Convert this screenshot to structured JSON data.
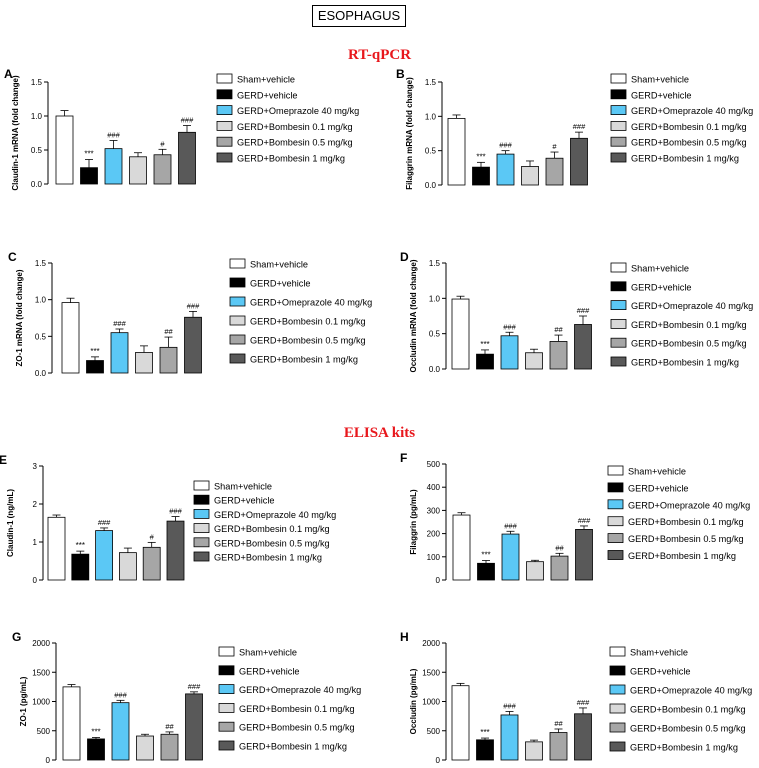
{
  "figure_title": "ESOPHAGUS",
  "section_headings": {
    "rtqpcr": "RT-qPCR",
    "elisa": "ELISA kits"
  },
  "legend_labels": [
    "Sham+vehicle",
    "GERD+vehicle",
    "GERD+Omeprazole 40 mg/kg",
    "GERD+Bombesin 0.1 mg/kg",
    "GERD+Bombesin 0.5 mg/kg",
    "GERD+Bombesin 1 mg/kg"
  ],
  "group_colors": [
    "#ffffff",
    "#000000",
    "#5bc8f5",
    "#d9d9d9",
    "#a6a6a6",
    "#595959"
  ],
  "chart_data": [
    {
      "panel": "A",
      "type": "bar",
      "ylabel": "Claudin-1 mRNA (fold change)",
      "ylim": [
        0,
        1.5
      ],
      "yticks": [
        "0.0",
        "0.5",
        "1.0",
        "1.5"
      ],
      "tick_values": [
        0,
        0.5,
        1.0,
        1.5
      ],
      "values": [
        1.0,
        0.24,
        0.52,
        0.4,
        0.43,
        0.76
      ],
      "errors": [
        0.08,
        0.12,
        0.12,
        0.06,
        0.08,
        0.1
      ],
      "annotations": [
        "",
        "***",
        "###",
        "",
        "#",
        "###"
      ]
    },
    {
      "panel": "B",
      "type": "bar",
      "ylabel": "Filaggrin mRNA (fold change)",
      "ylim": [
        0,
        1.5
      ],
      "yticks": [
        "0.0",
        "0.5",
        "1.0",
        "1.5"
      ],
      "tick_values": [
        0,
        0.5,
        1.0,
        1.5
      ],
      "values": [
        0.97,
        0.26,
        0.45,
        0.27,
        0.39,
        0.68
      ],
      "errors": [
        0.05,
        0.07,
        0.05,
        0.08,
        0.09,
        0.09
      ],
      "annotations": [
        "",
        "***",
        "###",
        "",
        "#",
        "###"
      ]
    },
    {
      "panel": "C",
      "type": "bar",
      "ylabel": "ZO-1 mRNA (fold change)",
      "ylim": [
        0,
        1.5
      ],
      "yticks": [
        "0.0",
        "0.5",
        "1.0",
        "1.5"
      ],
      "tick_values": [
        0,
        0.5,
        1.0,
        1.5
      ],
      "values": [
        0.96,
        0.17,
        0.55,
        0.28,
        0.35,
        0.76
      ],
      "errors": [
        0.06,
        0.05,
        0.05,
        0.09,
        0.14,
        0.08
      ],
      "annotations": [
        "",
        "***",
        "###",
        "",
        "##",
        "###"
      ]
    },
    {
      "panel": "D",
      "type": "bar",
      "ylabel": "Occludin mRNA (fold change)",
      "ylim": [
        0,
        1.5
      ],
      "yticks": [
        "0.0",
        "0.5",
        "1.0",
        "1.5"
      ],
      "tick_values": [
        0,
        0.5,
        1.0,
        1.5
      ],
      "values": [
        0.99,
        0.21,
        0.47,
        0.23,
        0.39,
        0.63
      ],
      "errors": [
        0.04,
        0.06,
        0.05,
        0.05,
        0.09,
        0.12
      ],
      "annotations": [
        "",
        "***",
        "###",
        "",
        "##",
        "###"
      ]
    },
    {
      "panel": "E",
      "type": "bar",
      "ylabel": "Claudin-1 (ng/mL)",
      "ylim": [
        0,
        3
      ],
      "yticks": [
        "0",
        "1",
        "2",
        "3"
      ],
      "tick_values": [
        0,
        1,
        2,
        3
      ],
      "values": [
        1.65,
        0.68,
        1.3,
        0.72,
        0.86,
        1.55
      ],
      "errors": [
        0.06,
        0.08,
        0.07,
        0.12,
        0.13,
        0.12
      ],
      "annotations": [
        "",
        "***",
        "###",
        "",
        "#",
        "###"
      ]
    },
    {
      "panel": "F",
      "type": "bar",
      "ylabel": "Filaggrin (pg/mL)",
      "ylim": [
        0,
        500
      ],
      "yticks": [
        "0",
        "100",
        "200",
        "300",
        "400",
        "500"
      ],
      "tick_values": [
        0,
        100,
        200,
        300,
        400,
        500
      ],
      "values": [
        280,
        72,
        198,
        79,
        103,
        218
      ],
      "errors": [
        10,
        12,
        12,
        6,
        12,
        15
      ],
      "annotations": [
        "",
        "***",
        "###",
        "",
        "##",
        "###"
      ]
    },
    {
      "panel": "G",
      "type": "bar",
      "ylabel": "ZO-1 (pg/mL)",
      "ylim": [
        0,
        2000
      ],
      "yticks": [
        "0",
        "500",
        "1000",
        "1500",
        "2000"
      ],
      "tick_values": [
        0,
        500,
        1000,
        1500,
        2000
      ],
      "values": [
        1250,
        360,
        980,
        410,
        440,
        1130
      ],
      "errors": [
        40,
        25,
        40,
        30,
        40,
        35
      ],
      "annotations": [
        "",
        "***",
        "###",
        "",
        "##",
        "###"
      ]
    },
    {
      "panel": "H",
      "type": "bar",
      "ylabel": "Occludin (pg/mL)",
      "ylim": [
        0,
        2000
      ],
      "yticks": [
        "0",
        "500",
        "1000",
        "1500",
        "2000"
      ],
      "tick_values": [
        0,
        500,
        1000,
        1500,
        2000
      ],
      "values": [
        1270,
        345,
        770,
        310,
        470,
        790
      ],
      "errors": [
        40,
        30,
        60,
        30,
        60,
        100
      ],
      "annotations": [
        "",
        "***",
        "###",
        "",
        "##",
        "###"
      ]
    }
  ]
}
